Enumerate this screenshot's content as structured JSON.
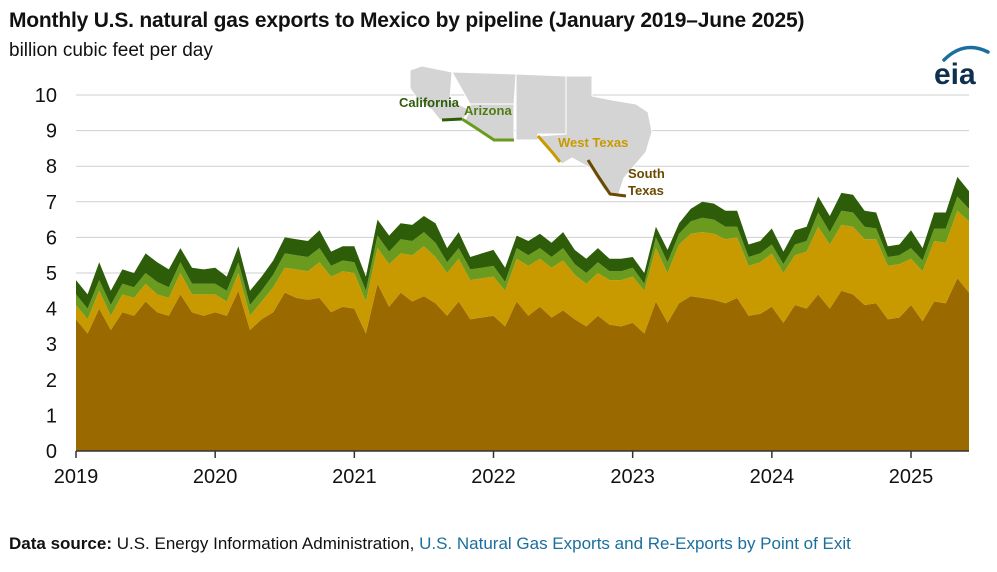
{
  "header": {
    "title": "Monthly U.S. natural gas exports to Mexico by pipeline (January 2019–June 2025)",
    "subtitle": "billion cubic feet per day"
  },
  "logo": {
    "text": "eia",
    "accent_color": "#1a6f9e"
  },
  "map": {
    "labels": {
      "california": "California",
      "arizona": "Arizona",
      "west_texas": "West Texas",
      "south_texas_line1": "South",
      "south_texas_line2": "Texas"
    }
  },
  "footer": {
    "source_label": "Data source:",
    "source_text": "U.S. Energy Information Administration,",
    "source_link": "U.S. Natural Gas Exports and Re-Exports by Point of Exit"
  },
  "chart_data": {
    "type": "area",
    "stacked": true,
    "x_start": "2019-01",
    "x_end": "2025-06",
    "x_ticks": [
      "2019",
      "2020",
      "2021",
      "2022",
      "2023",
      "2024",
      "2025"
    ],
    "y_ticks": [
      "0",
      "1",
      "2",
      "3",
      "4",
      "5",
      "6",
      "7",
      "8",
      "9",
      "10"
    ],
    "ylim": [
      0,
      10
    ],
    "grid": true,
    "series": [
      {
        "name": "South Texas",
        "color": "#9a6a00",
        "values": [
          3.7,
          3.3,
          4.0,
          3.4,
          3.9,
          3.8,
          4.2,
          3.9,
          3.8,
          4.4,
          3.9,
          3.8,
          3.9,
          3.8,
          4.5,
          3.4,
          3.7,
          3.9,
          4.45,
          4.3,
          4.25,
          4.3,
          3.9,
          4.05,
          4.0,
          3.3,
          4.7,
          4.05,
          4.45,
          4.2,
          4.35,
          4.15,
          3.8,
          4.2,
          3.7,
          3.75,
          3.8,
          3.5,
          4.2,
          3.8,
          4.05,
          3.75,
          3.95,
          3.7,
          3.5,
          3.8,
          3.55,
          3.5,
          3.6,
          3.3,
          4.2,
          3.6,
          4.15,
          4.35,
          4.3,
          4.25,
          4.15,
          4.3,
          3.8,
          3.85,
          4.05,
          3.6,
          4.1,
          4.0,
          4.4,
          4.0,
          4.5,
          4.4,
          4.1,
          4.15,
          3.7,
          3.75,
          4.1,
          3.65,
          4.2,
          4.15,
          4.85,
          4.45
        ]
      },
      {
        "name": "West Texas",
        "color": "#c99a00",
        "values": [
          0.4,
          0.4,
          0.5,
          0.4,
          0.5,
          0.5,
          0.5,
          0.5,
          0.5,
          0.6,
          0.5,
          0.6,
          0.5,
          0.4,
          0.5,
          0.4,
          0.5,
          0.7,
          0.7,
          0.8,
          0.8,
          1.0,
          1.0,
          1.0,
          1.0,
          0.9,
          1.0,
          1.2,
          1.1,
          1.3,
          1.4,
          1.3,
          1.2,
          1.2,
          1.1,
          1.1,
          1.1,
          1.0,
          1.2,
          1.4,
          1.35,
          1.4,
          1.4,
          1.25,
          1.2,
          1.2,
          1.25,
          1.3,
          1.3,
          1.2,
          1.5,
          1.4,
          1.65,
          1.75,
          1.85,
          1.85,
          1.8,
          1.7,
          1.4,
          1.45,
          1.5,
          1.4,
          1.4,
          1.6,
          1.9,
          1.8,
          1.85,
          1.9,
          1.85,
          1.8,
          1.5,
          1.5,
          1.3,
          1.4,
          1.7,
          1.7,
          1.9,
          2.0
        ]
      },
      {
        "name": "Arizona",
        "color": "#6a9b1e",
        "values": [
          0.3,
          0.3,
          0.3,
          0.3,
          0.3,
          0.3,
          0.3,
          0.35,
          0.3,
          0.3,
          0.3,
          0.3,
          0.3,
          0.3,
          0.3,
          0.3,
          0.3,
          0.35,
          0.4,
          0.4,
          0.4,
          0.4,
          0.3,
          0.3,
          0.3,
          0.3,
          0.35,
          0.35,
          0.4,
          0.4,
          0.4,
          0.4,
          0.3,
          0.3,
          0.3,
          0.3,
          0.3,
          0.25,
          0.3,
          0.3,
          0.3,
          0.3,
          0.35,
          0.3,
          0.3,
          0.3,
          0.25,
          0.25,
          0.25,
          0.2,
          0.3,
          0.3,
          0.3,
          0.35,
          0.4,
          0.4,
          0.35,
          0.3,
          0.25,
          0.25,
          0.25,
          0.25,
          0.3,
          0.3,
          0.4,
          0.35,
          0.4,
          0.4,
          0.35,
          0.3,
          0.25,
          0.25,
          0.3,
          0.3,
          0.35,
          0.4,
          0.4,
          0.35
        ]
      },
      {
        "name": "California",
        "color": "#2e5d0a",
        "values": [
          0.4,
          0.4,
          0.5,
          0.4,
          0.4,
          0.4,
          0.55,
          0.55,
          0.5,
          0.4,
          0.45,
          0.4,
          0.45,
          0.4,
          0.45,
          0.4,
          0.4,
          0.4,
          0.45,
          0.45,
          0.45,
          0.5,
          0.4,
          0.4,
          0.45,
          0.4,
          0.45,
          0.45,
          0.45,
          0.45,
          0.45,
          0.55,
          0.4,
          0.45,
          0.35,
          0.4,
          0.45,
          0.4,
          0.35,
          0.4,
          0.4,
          0.4,
          0.45,
          0.4,
          0.4,
          0.4,
          0.35,
          0.35,
          0.3,
          0.3,
          0.3,
          0.35,
          0.3,
          0.35,
          0.45,
          0.45,
          0.45,
          0.45,
          0.35,
          0.35,
          0.45,
          0.35,
          0.4,
          0.4,
          0.45,
          0.45,
          0.5,
          0.5,
          0.45,
          0.45,
          0.3,
          0.3,
          0.5,
          0.35,
          0.45,
          0.45,
          0.55,
          0.5
        ]
      }
    ]
  }
}
